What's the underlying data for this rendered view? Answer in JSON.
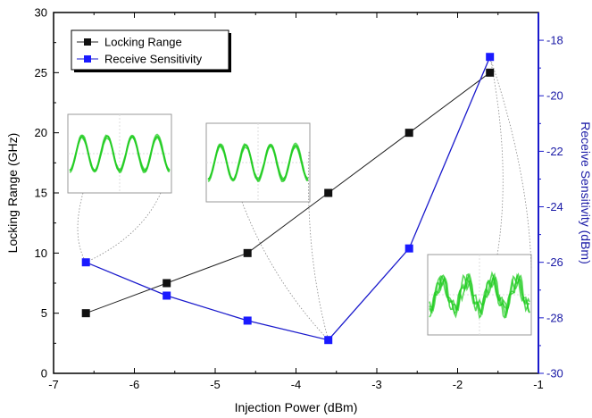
{
  "chart_data": {
    "type": "line",
    "title": "",
    "xlabel": "Injection Power (dBm)",
    "ylabel": "Locking Range (GHz)",
    "y2label": "Receive Sensitivity (dBm)",
    "xlim": [
      -7,
      -1
    ],
    "ylim": [
      0,
      30
    ],
    "y2lim": [
      -30,
      -17
    ],
    "x_ticks": [
      -7,
      -6,
      -5,
      -4,
      -3,
      -2,
      -1
    ],
    "y_ticks": [
      0,
      5,
      10,
      15,
      20,
      25,
      30
    ],
    "y2_ticks": [
      -30,
      -28,
      -26,
      -24,
      -22,
      -20,
      -18
    ],
    "legend_position": "top-left",
    "series": [
      {
        "name": "Locking Range",
        "axis": "left",
        "color": "#222222",
        "marker": "square",
        "x": [
          -6.6,
          -5.6,
          -4.6,
          -3.6,
          -2.6,
          -1.6
        ],
        "y": [
          5,
          7.5,
          10,
          15,
          20,
          25
        ]
      },
      {
        "name": "Receive Sensitivity",
        "axis": "right",
        "color": "#1a1acc",
        "marker": "square",
        "x": [
          -6.6,
          -5.6,
          -4.6,
          -3.6,
          -2.6,
          -1.6
        ],
        "y": [
          -26,
          -27.2,
          -28.1,
          -28.8,
          -25.5,
          -18.6
        ]
      }
    ],
    "insets": [
      {
        "name": "eye-diagram-low-power",
        "trace_color": "#22cc22"
      },
      {
        "name": "eye-diagram-mid-power",
        "trace_color": "#22cc22"
      },
      {
        "name": "eye-diagram-high-power",
        "trace_color": "#22cc22"
      }
    ]
  }
}
